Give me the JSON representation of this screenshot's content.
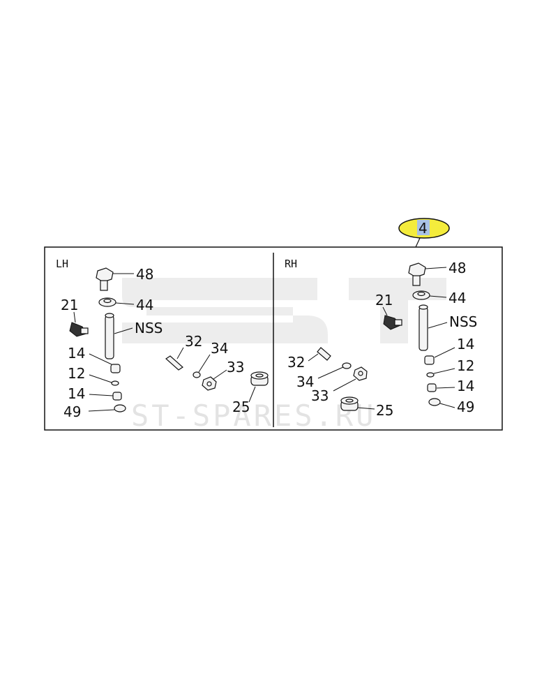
{
  "callout": {
    "number": "4",
    "color": "#f4ec3c"
  },
  "panels": {
    "left": {
      "title": "LH"
    },
    "right": {
      "title": "RH"
    }
  },
  "watermark": "ST-SPARES.RU",
  "lh_labels": {
    "l48": "48",
    "l44": "44",
    "l21": "21",
    "lnss": "NSS",
    "l14a": "14",
    "l12": "12",
    "l14b": "14",
    "l49": "49",
    "l32": "32",
    "l34": "34",
    "l33": "33",
    "l25": "25"
  },
  "rh_labels": {
    "l48": "48",
    "l44": "44",
    "l21": "21",
    "lnss": "NSS",
    "l14a": "14",
    "l12": "12",
    "l14b": "14",
    "l49": "49",
    "l32": "32",
    "l34": "34",
    "l33": "33",
    "l25": "25"
  }
}
